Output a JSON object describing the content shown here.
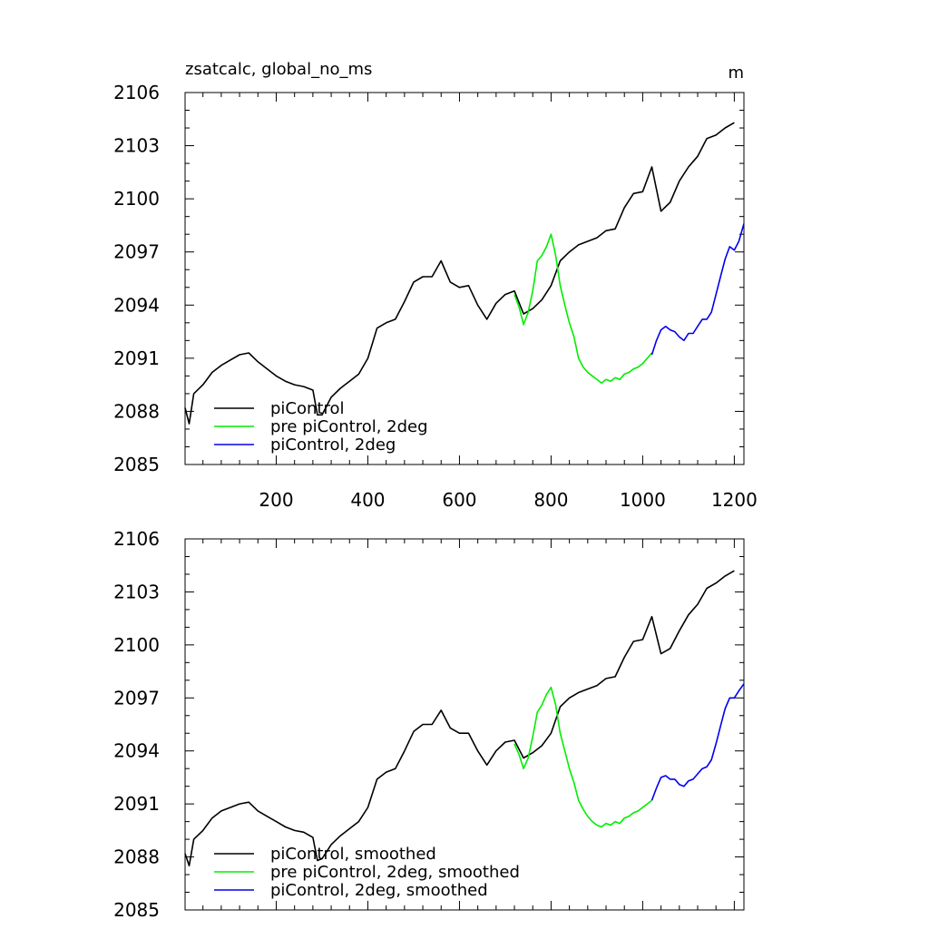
{
  "figure": {
    "title": "zsatcalc, global_no_ms",
    "units": "m"
  },
  "chart_data": [
    {
      "type": "line",
      "panel": "top",
      "xlim": [
        1,
        1221
      ],
      "ylim": [
        2085,
        2106
      ],
      "x_ticks": [
        200,
        400,
        600,
        800,
        1000,
        1200
      ],
      "x_tick_labels": [
        "200",
        "400",
        "600",
        "800",
        "1000",
        "1200"
      ],
      "y_ticks": [
        2085,
        2088,
        2091,
        2094,
        2097,
        2100,
        2103,
        2106
      ],
      "y_tick_labels": [
        "2085",
        "2088",
        "2091",
        "2094",
        "2097",
        "2100",
        "2103",
        "2106"
      ],
      "legend_position": "bottom-left",
      "grid": false,
      "series": [
        {
          "name": "piControl",
          "color": "#000000",
          "x": [
            1,
            10,
            20,
            40,
            60,
            80,
            100,
            120,
            140,
            160,
            180,
            200,
            220,
            240,
            260,
            280,
            290,
            300,
            320,
            340,
            360,
            380,
            400,
            420,
            440,
            460,
            480,
            500,
            520,
            540,
            560,
            580,
            600,
            620,
            640,
            660,
            680,
            700,
            720,
            740,
            760,
            780,
            800,
            820,
            840,
            860,
            880,
            900,
            920,
            940,
            960,
            980,
            1000,
            1020,
            1040,
            1060,
            1080,
            1100,
            1120,
            1140,
            1160,
            1180,
            1200
          ],
          "y": [
            2088.2,
            2087.3,
            2089.0,
            2089.5,
            2090.2,
            2090.6,
            2090.9,
            2091.2,
            2091.3,
            2090.8,
            2090.4,
            2090.0,
            2089.7,
            2089.5,
            2089.4,
            2089.2,
            2087.8,
            2087.8,
            2088.8,
            2089.3,
            2089.7,
            2090.1,
            2091.0,
            2092.7,
            2093.0,
            2093.2,
            2094.2,
            2095.3,
            2095.6,
            2095.6,
            2096.5,
            2095.3,
            2095.0,
            2095.1,
            2094.0,
            2093.2,
            2094.1,
            2094.6,
            2094.8,
            2093.5,
            2093.8,
            2094.3,
            2095.1,
            2096.5,
            2097.0,
            2097.4,
            2097.6,
            2097.8,
            2098.2,
            2098.3,
            2099.5,
            2100.3,
            2100.4,
            2101.8,
            2099.3,
            2099.8,
            2101.0,
            2101.8,
            2102.4,
            2103.4,
            2103.6,
            2104.0,
            2104.3
          ]
        },
        {
          "name": "pre piControl, 2deg",
          "color": "#00ee00",
          "x": [
            720,
            730,
            740,
            750,
            760,
            770,
            780,
            790,
            800,
            810,
            820,
            830,
            840,
            850,
            860,
            870,
            880,
            890,
            900,
            910,
            920,
            930,
            940,
            950,
            960,
            970,
            980,
            990,
            1000,
            1010,
            1020
          ],
          "y": [
            2094.6,
            2093.9,
            2092.9,
            2093.6,
            2094.8,
            2096.5,
            2096.8,
            2097.3,
            2098.0,
            2096.8,
            2095.1,
            2094.0,
            2093.0,
            2092.2,
            2091.0,
            2090.5,
            2090.2,
            2090.0,
            2089.8,
            2089.6,
            2089.8,
            2089.7,
            2089.9,
            2089.8,
            2090.1,
            2090.2,
            2090.4,
            2090.5,
            2090.7,
            2091.0,
            2091.3
          ]
        },
        {
          "name": "piControl, 2deg",
          "color": "#0000ee",
          "x": [
            1020,
            1030,
            1040,
            1050,
            1060,
            1070,
            1080,
            1090,
            1100,
            1110,
            1120,
            1130,
            1140,
            1150,
            1160,
            1170,
            1180,
            1190,
            1200,
            1210,
            1221
          ],
          "y": [
            2091.2,
            2092.0,
            2092.6,
            2092.8,
            2092.6,
            2092.5,
            2092.2,
            2092.0,
            2092.4,
            2092.4,
            2092.8,
            2093.2,
            2093.2,
            2093.6,
            2094.6,
            2095.6,
            2096.6,
            2097.3,
            2097.1,
            2097.6,
            2098.6
          ]
        }
      ]
    },
    {
      "type": "line",
      "panel": "bottom",
      "xlim": [
        1,
        1221
      ],
      "ylim": [
        2085,
        2106
      ],
      "x_ticks": [
        200,
        400,
        600,
        800,
        1000,
        1200
      ],
      "x_tick_labels": [],
      "y_ticks": [
        2085,
        2088,
        2091,
        2094,
        2097,
        2100,
        2103,
        2106
      ],
      "y_tick_labels": [
        "2085",
        "2088",
        "2091",
        "2094",
        "2097",
        "2100",
        "2103",
        "2106"
      ],
      "legend_position": "bottom-left",
      "grid": false,
      "series": [
        {
          "name": "piControl, smoothed",
          "color": "#000000",
          "x": [
            1,
            10,
            20,
            40,
            60,
            80,
            100,
            120,
            140,
            160,
            180,
            200,
            220,
            240,
            260,
            280,
            290,
            300,
            320,
            340,
            360,
            380,
            400,
            420,
            440,
            460,
            480,
            500,
            520,
            540,
            560,
            580,
            600,
            620,
            640,
            660,
            680,
            700,
            720,
            740,
            760,
            780,
            800,
            820,
            840,
            860,
            880,
            900,
            920,
            940,
            960,
            980,
            1000,
            1020,
            1040,
            1060,
            1080,
            1100,
            1120,
            1140,
            1160,
            1180,
            1200
          ],
          "y": [
            2088.2,
            2087.5,
            2089.0,
            2089.5,
            2090.2,
            2090.6,
            2090.8,
            2091.0,
            2091.1,
            2090.6,
            2090.3,
            2090.0,
            2089.7,
            2089.5,
            2089.4,
            2089.1,
            2087.8,
            2087.9,
            2088.7,
            2089.2,
            2089.6,
            2090.0,
            2090.8,
            2092.4,
            2092.8,
            2093.0,
            2094.0,
            2095.1,
            2095.5,
            2095.5,
            2096.3,
            2095.3,
            2095.0,
            2095.0,
            2094.0,
            2093.2,
            2094.0,
            2094.5,
            2094.6,
            2093.6,
            2093.9,
            2094.3,
            2095.0,
            2096.5,
            2097.0,
            2097.3,
            2097.5,
            2097.7,
            2098.1,
            2098.2,
            2099.3,
            2100.2,
            2100.3,
            2101.6,
            2099.5,
            2099.8,
            2100.8,
            2101.7,
            2102.3,
            2103.2,
            2103.5,
            2103.9,
            2104.2
          ]
        },
        {
          "name": "pre piControl, 2deg, smoothed",
          "color": "#00ee00",
          "x": [
            720,
            730,
            740,
            750,
            760,
            770,
            780,
            790,
            800,
            810,
            820,
            830,
            840,
            850,
            860,
            870,
            880,
            890,
            900,
            910,
            920,
            930,
            940,
            950,
            960,
            970,
            980,
            990,
            1000,
            1010,
            1020
          ],
          "y": [
            2094.4,
            2093.8,
            2093.0,
            2093.6,
            2094.8,
            2096.2,
            2096.6,
            2097.2,
            2097.6,
            2096.6,
            2095.0,
            2094.0,
            2093.0,
            2092.2,
            2091.2,
            2090.7,
            2090.3,
            2090.0,
            2089.8,
            2089.7,
            2089.9,
            2089.8,
            2090.0,
            2089.9,
            2090.2,
            2090.3,
            2090.5,
            2090.6,
            2090.8,
            2091.0,
            2091.2
          ]
        },
        {
          "name": "piControl, 2deg, smoothed",
          "color": "#0000ee",
          "x": [
            1020,
            1030,
            1040,
            1050,
            1060,
            1070,
            1080,
            1090,
            1100,
            1110,
            1120,
            1130,
            1140,
            1150,
            1160,
            1170,
            1180,
            1190,
            1200,
            1210,
            1221
          ],
          "y": [
            2091.2,
            2091.9,
            2092.5,
            2092.6,
            2092.4,
            2092.4,
            2092.1,
            2092.0,
            2092.3,
            2092.4,
            2092.7,
            2093.0,
            2093.1,
            2093.5,
            2094.4,
            2095.4,
            2096.4,
            2097.0,
            2097.0,
            2097.4,
            2097.8
          ]
        }
      ]
    }
  ]
}
